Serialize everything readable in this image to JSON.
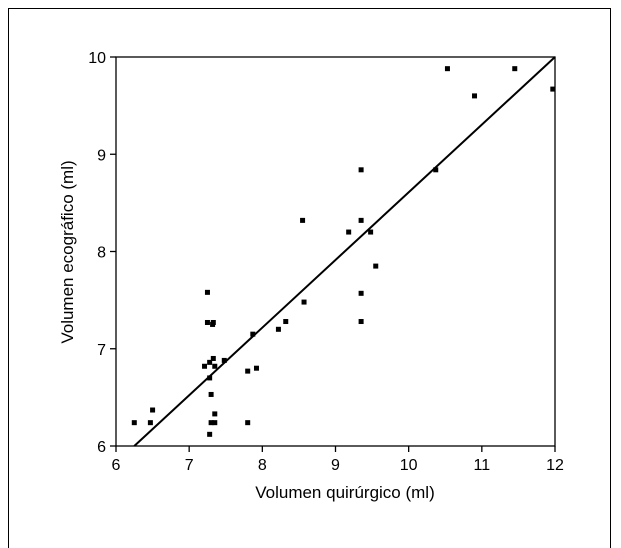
{
  "chart_data": {
    "type": "scatter",
    "title": "",
    "xlabel": "Volumen quirúrgico (ml)",
    "ylabel": "Volumen ecográfico (ml)",
    "xlim": [
      6,
      12
    ],
    "ylim": [
      6,
      10
    ],
    "x_ticks": [
      6,
      7,
      8,
      9,
      10,
      11,
      12
    ],
    "y_ticks": [
      6,
      7,
      8,
      9,
      10
    ],
    "grid": false,
    "legend": "none",
    "marker_color": "#000000",
    "series": [
      {
        "points": [
          [
            6.25,
            6.24
          ],
          [
            6.47,
            6.24
          ],
          [
            6.5,
            6.37
          ],
          [
            7.21,
            6.82
          ],
          [
            7.25,
            7.58
          ],
          [
            7.25,
            7.27
          ],
          [
            7.28,
            6.86
          ],
          [
            7.28,
            6.7
          ],
          [
            7.3,
            6.53
          ],
          [
            7.3,
            6.24
          ],
          [
            7.28,
            6.12
          ],
          [
            7.32,
            7.25
          ],
          [
            7.33,
            7.27
          ],
          [
            7.33,
            6.9
          ],
          [
            7.35,
            6.82
          ],
          [
            7.35,
            6.33
          ],
          [
            7.35,
            6.24
          ],
          [
            7.48,
            6.88
          ],
          [
            7.8,
            6.77
          ],
          [
            7.8,
            6.24
          ],
          [
            7.87,
            7.15
          ],
          [
            7.92,
            6.8
          ],
          [
            8.22,
            7.2
          ],
          [
            8.32,
            7.28
          ],
          [
            8.55,
            8.32
          ],
          [
            8.57,
            7.48
          ],
          [
            9.18,
            8.2
          ],
          [
            9.35,
            8.84
          ],
          [
            9.35,
            8.32
          ],
          [
            9.35,
            7.57
          ],
          [
            9.35,
            7.28
          ],
          [
            9.48,
            8.2
          ],
          [
            9.55,
            7.85
          ],
          [
            10.37,
            8.84
          ],
          [
            10.53,
            9.88
          ],
          [
            10.9,
            9.6
          ],
          [
            11.45,
            9.88
          ],
          [
            11.97,
            9.67
          ]
        ]
      }
    ],
    "fit_line": {
      "x": [
        6.25,
        12.0
      ],
      "y": [
        6.0,
        10.0
      ]
    }
  }
}
